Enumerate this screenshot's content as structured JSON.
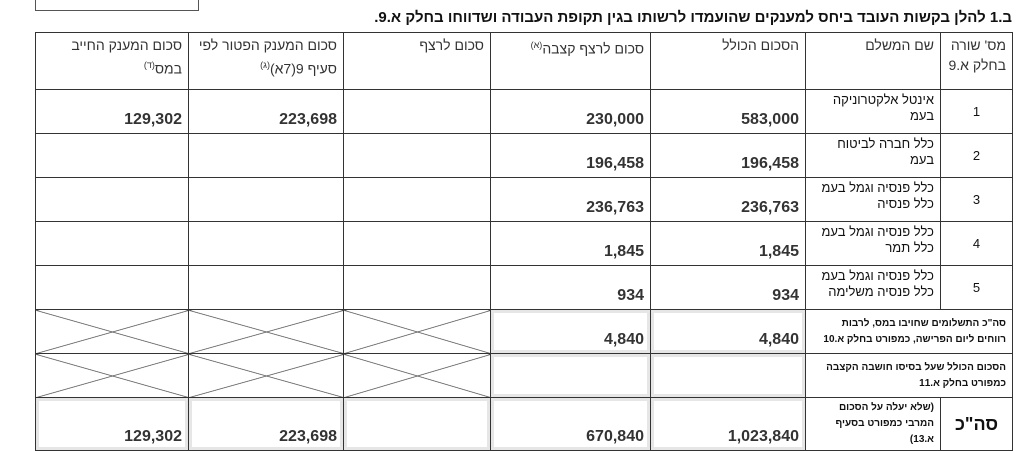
{
  "title": "ב.1 להלן בקשות העובד ביחס למענקים שהועמדו לרשותו בגין תקופת העבודה ושדווחו בחלק א.9.",
  "table": {
    "headers": [
      {
        "text": "מס' שורה בחלק א.9"
      },
      {
        "text": "שם המשלם"
      },
      {
        "text": "הסכום הכולל"
      },
      {
        "text": "סכום לרצף קצבה",
        "note": "(א)"
      },
      {
        "text": "סכום לרצף"
      },
      {
        "text": "סכום המענק הפטור לפי סעיף 9(7א)",
        "note": "(ג)"
      },
      {
        "text": "סכום המענק החייב במס",
        "note": "(ד)"
      }
    ],
    "rows": [
      {
        "line": "1",
        "payer": "אינטל אלקטרוניקה בעמ",
        "cells": [
          "583,000",
          "230,000",
          null,
          "223,698",
          "129,302"
        ]
      },
      {
        "line": "2",
        "payer": "כלל חברה לביטוח בעמ",
        "cells": [
          "196,458",
          "196,458",
          null,
          null,
          null
        ]
      },
      {
        "line": "3",
        "payer": "כלל פנסיה וגמל בעמ כלל פנסיה",
        "cells": [
          "236,763",
          "236,763",
          null,
          null,
          null
        ]
      },
      {
        "line": "4",
        "payer": "כלל פנסיה וגמל בעמ כלל תמר",
        "cells": [
          "1,845",
          "1,845",
          null,
          null,
          null
        ]
      },
      {
        "line": "5",
        "payer": "כלל פנסיה וגמל בעמ כלל פנסיה משלימה",
        "cells": [
          "934",
          "934",
          null,
          null,
          null
        ]
      }
    ],
    "summary": [
      {
        "label": "סה\"כ התשלומים שחויבו במס, לרבות רווחים ליום הפרישה, כמפורט בחלק א.10",
        "cells": [
          "4,840",
          "4,840",
          null,
          null,
          null
        ],
        "crossed": true
      },
      {
        "label": "הסכום הכולל שעל בסיסו חושבה הקצבה כמפורט בחלק א.11",
        "cells": [
          null,
          null,
          null,
          null,
          null
        ],
        "crossed": true
      },
      {
        "label": "סה\"כ",
        "note": "(שלא יעלה על הסכום המרבי כמפורט בסעיף א.13)",
        "cells": [
          "1,023,840",
          "670,840",
          null,
          "223,698",
          "129,302"
        ]
      }
    ]
  }
}
